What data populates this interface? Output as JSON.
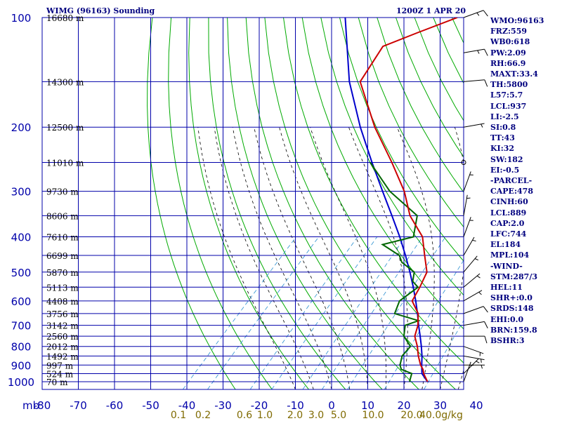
{
  "header": {
    "station": "WIMG (96163) Sounding",
    "datetime": "1200Z  1 APR 20"
  },
  "indices": [
    "WMO:96163",
    "FRZ:559",
    "WB0:618",
    "PW:2.09",
    "RH:66.9",
    "MAXT:33.4",
    "TH:5800",
    "L57:5.7",
    "LCL:937",
    "LI:-2.5",
    "SI:0.8",
    "TT:43",
    "KI:32",
    "SW:182",
    "EI:-0.5",
    "-PARCEL-",
    "CAPE:478",
    "CINH:60",
    "LCL:889",
    "CAP:2.0",
    "LFC:744",
    "EL:184",
    "MPL:104",
    "-WIND-",
    "STM:287/3",
    "HEL:11",
    "SHR+:0.0",
    "SRDS:148",
    "EHI:0.0",
    "BRN:159.8",
    "BSHR:3"
  ],
  "colors": {
    "grid": "#0000aa",
    "dry_adiabat": "#00aa00",
    "moist_adiabat": "#000000",
    "mixing_ratio": "#2a8fd0",
    "temperature": "#cc0000",
    "dewpoint": "#006600",
    "parcel": "#0000cc",
    "axis_text": "#0000aa",
    "mixing_text": "#7f6a00",
    "index_text": "#00007f"
  },
  "chart_data": {
    "type": "skew-t",
    "xlabel": "mb",
    "pressure_ticks": [
      "100",
      "200",
      "300",
      "400",
      "500",
      "600",
      "700",
      "800",
      "900",
      "1000"
    ],
    "temperature_ticks": [
      "-80",
      "-70",
      "-60",
      "-50",
      "-40",
      "-30",
      "-20",
      "-10",
      "0",
      "10",
      "20",
      "30",
      "40"
    ],
    "mixing_ratio_labels": [
      "0.1",
      "0.2",
      "0.6",
      "1.0",
      "2.0",
      "3.0",
      "5.0",
      "10.0",
      "20.0",
      "40.0g/kg"
    ],
    "height_labels": [
      {
        "p": 100,
        "label": "16680 m"
      },
      {
        "p": 150,
        "label": "14300 m"
      },
      {
        "p": 200,
        "label": "12500 m"
      },
      {
        "p": 250,
        "label": "11010 m"
      },
      {
        "p": 300,
        "label": "9730 m"
      },
      {
        "p": 350,
        "label": "8606 m"
      },
      {
        "p": 400,
        "label": "7610 m"
      },
      {
        "p": 450,
        "label": "6699 m"
      },
      {
        "p": 500,
        "label": "5870 m"
      },
      {
        "p": 550,
        "label": "5113 m"
      },
      {
        "p": 600,
        "label": "4408 m"
      },
      {
        "p": 650,
        "label": "3756 m"
      },
      {
        "p": 700,
        "label": "3142 m"
      },
      {
        "p": 750,
        "label": "2560 m"
      },
      {
        "p": 800,
        "label": "2012 m"
      },
      {
        "p": 850,
        "label": "1492 m"
      },
      {
        "p": 900,
        "label": "997 m"
      },
      {
        "p": 950,
        "label": "524 m"
      },
      {
        "p": 1000,
        "label": "70 m"
      }
    ],
    "temperature": [
      [
        1000,
        24.5
      ],
      [
        950,
        21.3
      ],
      [
        925,
        20.0
      ],
      [
        900,
        18.2
      ],
      [
        850,
        15.2
      ],
      [
        800,
        12.4
      ],
      [
        750,
        9.0
      ],
      [
        700,
        7.0
      ],
      [
        650,
        4.0
      ],
      [
        600,
        -1.0
      ],
      [
        550,
        -2.5
      ],
      [
        500,
        -4.5
      ],
      [
        450,
        -9.5
      ],
      [
        400,
        -15.0
      ],
      [
        350,
        -24.0
      ],
      [
        300,
        -32.0
      ],
      [
        250,
        -43.0
      ],
      [
        200,
        -57.0
      ],
      [
        150,
        -73.0
      ],
      [
        120,
        -76.0
      ],
      [
        110,
        -70.0
      ],
      [
        100,
        -63.0
      ]
    ],
    "dewpoint": [
      [
        1000,
        19.5
      ],
      [
        950,
        18.0
      ],
      [
        925,
        14.0
      ],
      [
        900,
        12.5
      ],
      [
        850,
        10.7
      ],
      [
        800,
        10.5
      ],
      [
        750,
        6.0
      ],
      [
        700,
        3.5
      ],
      [
        680,
        6.0
      ],
      [
        650,
        -2.5
      ],
      [
        600,
        -4.5
      ],
      [
        550,
        -3.0
      ],
      [
        530,
        -6.0
      ],
      [
        500,
        -8.0
      ],
      [
        470,
        -14.0
      ],
      [
        450,
        -16.5
      ],
      [
        420,
        -24.0
      ],
      [
        400,
        -17.5
      ],
      [
        350,
        -22.0
      ],
      [
        300,
        -36.0
      ],
      [
        250,
        -49.0
      ]
    ],
    "parcel": [
      [
        1000,
        24.5
      ],
      [
        950,
        20.8
      ],
      [
        900,
        18.5
      ],
      [
        850,
        16.2
      ],
      [
        800,
        13.5
      ],
      [
        750,
        10.5
      ],
      [
        700,
        7.2
      ],
      [
        650,
        3.8
      ],
      [
        600,
        0.0
      ],
      [
        550,
        -4.3
      ],
      [
        500,
        -9.2
      ],
      [
        450,
        -14.8
      ],
      [
        400,
        -21.3
      ],
      [
        350,
        -29.0
      ],
      [
        300,
        -38.0
      ],
      [
        250,
        -48.5
      ],
      [
        200,
        -61.0
      ],
      [
        150,
        -76.0
      ],
      [
        100,
        -94.0
      ]
    ],
    "wind_barbs": [
      {
        "p": 1000,
        "dir": 20,
        "spd": 5
      },
      {
        "p": 950,
        "dir": 45,
        "spd": 5
      },
      {
        "p": 900,
        "dir": 90,
        "spd": 5
      },
      {
        "p": 850,
        "dir": 100,
        "spd": 5
      },
      {
        "p": 800,
        "dir": 110,
        "spd": 5
      },
      {
        "p": 750,
        "dir": 90,
        "spd": 10
      },
      {
        "p": 700,
        "dir": 80,
        "spd": 10
      },
      {
        "p": 650,
        "dir": 70,
        "spd": 10
      },
      {
        "p": 600,
        "dir": 60,
        "spd": 5
      },
      {
        "p": 550,
        "dir": 50,
        "spd": 5
      },
      {
        "p": 500,
        "dir": 40,
        "spd": 5
      },
      {
        "p": 450,
        "dir": 30,
        "spd": 5
      },
      {
        "p": 400,
        "dir": 20,
        "spd": 5
      },
      {
        "p": 350,
        "dir": 10,
        "spd": 5
      },
      {
        "p": 300,
        "dir": 20,
        "spd": 5
      },
      {
        "p": 250,
        "dir": 270,
        "spd": 0
      },
      {
        "p": 200,
        "dir": 80,
        "spd": 5
      },
      {
        "p": 150,
        "dir": 85,
        "spd": 10
      },
      {
        "p": 125,
        "dir": 80,
        "spd": 15
      },
      {
        "p": 100,
        "dir": 70,
        "spd": 15
      }
    ]
  }
}
